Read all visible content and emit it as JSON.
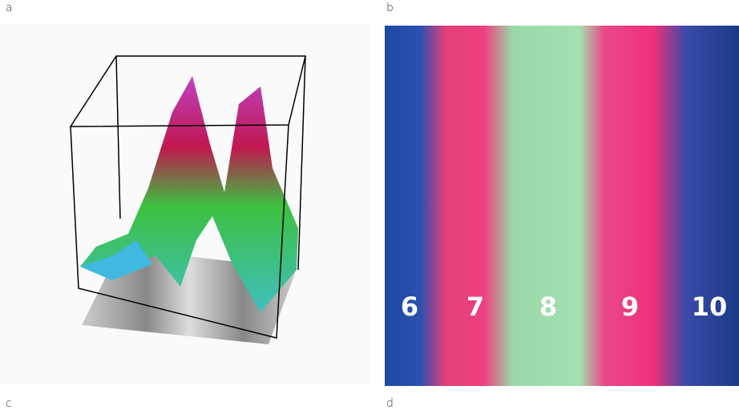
{
  "panels": [
    {
      "label": "a"
    },
    {
      "label": "b",
      "lanes": [
        "6",
        "7",
        "8",
        "9",
        "10"
      ]
    },
    {
      "label": "c"
    },
    {
      "label": "d"
    }
  ]
}
